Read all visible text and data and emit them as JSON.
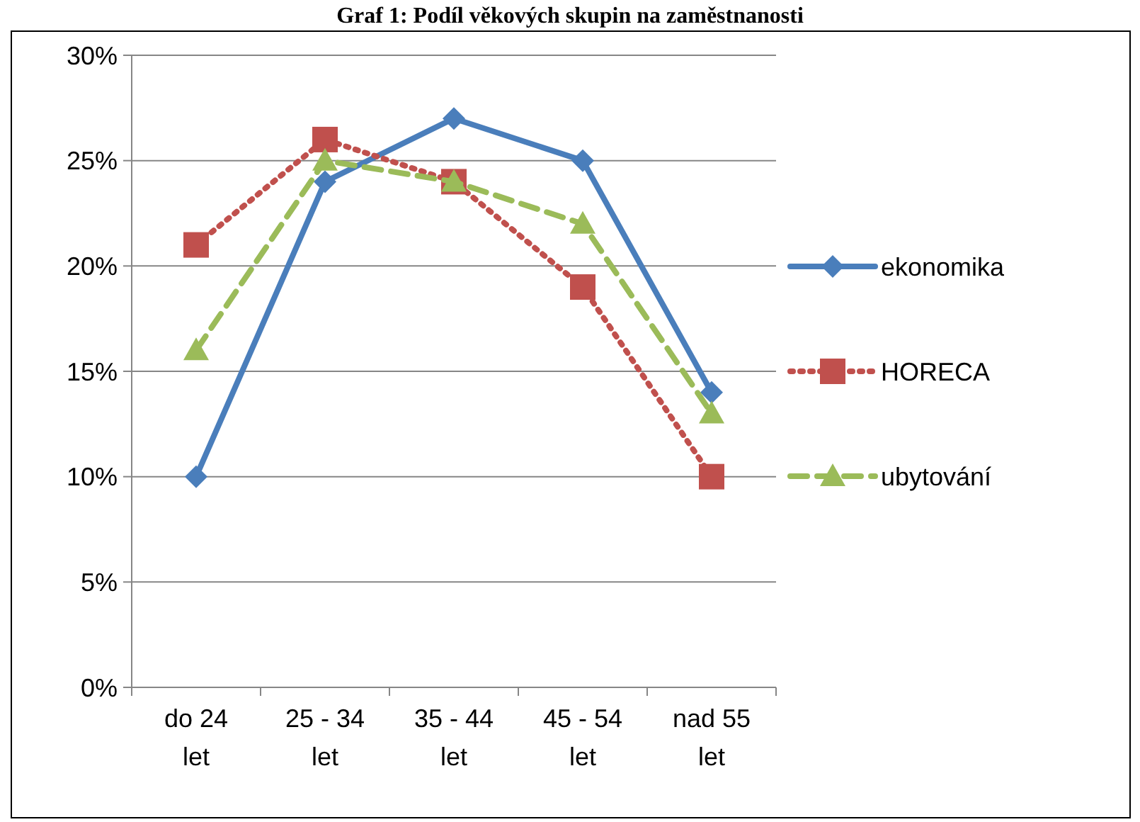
{
  "chart_data": {
    "type": "line",
    "title": "Graf 1: Podíl věkových skupin na zaměstnanosti",
    "categories": [
      "do 24 let",
      "25 - 34 let",
      "35 - 44 let",
      "45 - 54 let",
      "nad 55 let"
    ],
    "series": [
      {
        "name": "ekonomika",
        "color": "#4a7ebb",
        "values": [
          10,
          24,
          27,
          25,
          14
        ],
        "marker": "diamond",
        "line_style": "solid"
      },
      {
        "name": "HORECA",
        "color": "#c0504d",
        "values": [
          21,
          26,
          24,
          19,
          10
        ],
        "marker": "square",
        "line_style": "dotted"
      },
      {
        "name": "ubytování",
        "color": "#9bbb59",
        "values": [
          16,
          25,
          24,
          22,
          13
        ],
        "marker": "triangle",
        "line_style": "dashed"
      }
    ],
    "ylim": [
      0,
      30
    ],
    "yticks": [
      {
        "value": 0,
        "label": "0%"
      },
      {
        "value": 5,
        "label": "5%"
      },
      {
        "value": 10,
        "label": "10%"
      },
      {
        "value": 15,
        "label": "15%"
      },
      {
        "value": 20,
        "label": "20%"
      },
      {
        "value": 25,
        "label": "25%"
      },
      {
        "value": 30,
        "label": "30%"
      }
    ],
    "grid": "y",
    "legend": "right"
  }
}
